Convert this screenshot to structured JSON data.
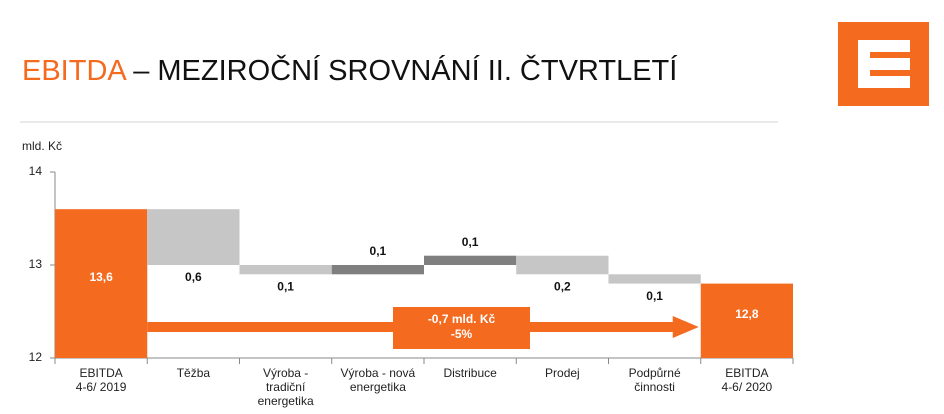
{
  "title": {
    "highlight": "EBITDA",
    "rest": "– MEZIROČNÍ SROVNÁNÍ II. ČTVRTLETÍ"
  },
  "chart_data": {
    "type": "waterfall",
    "y_label": "mld. Kč",
    "categories": [
      [
        "EBITDA",
        "4-6/ 2019"
      ],
      [
        "Těžba"
      ],
      [
        "Výroba -",
        "tradiční",
        "energetika"
      ],
      [
        "Výroba - nová",
        "energetika"
      ],
      [
        "Distribuce"
      ],
      [
        "Prodej"
      ],
      [
        "Podpůrné",
        "činnosti"
      ],
      [
        "EBITDA",
        "4-6/ 2020"
      ]
    ],
    "measure": [
      "absolute",
      "relative",
      "relative",
      "relative",
      "relative",
      "relative",
      "relative",
      "total"
    ],
    "values": [
      13.6,
      -0.6,
      -0.1,
      0.1,
      0.1,
      -0.2,
      -0.1,
      12.8
    ],
    "value_labels": [
      "13,6",
      "0,6",
      "0,1",
      "0,1",
      "0,1",
      "0,2",
      "0,1",
      "12,8"
    ],
    "colors": [
      "#f46a1f",
      "#c6c6c6",
      "#c6c6c6",
      "#7f7f7f",
      "#7f7f7f",
      "#c6c6c6",
      "#c6c6c6",
      "#f46a1f"
    ],
    "ylim": [
      12,
      14
    ],
    "yticks": [
      12,
      13,
      14
    ],
    "annotation": [
      "-0,7 mld. Kč",
      "-5%"
    ],
    "annotation_color": "#f46a1f"
  }
}
